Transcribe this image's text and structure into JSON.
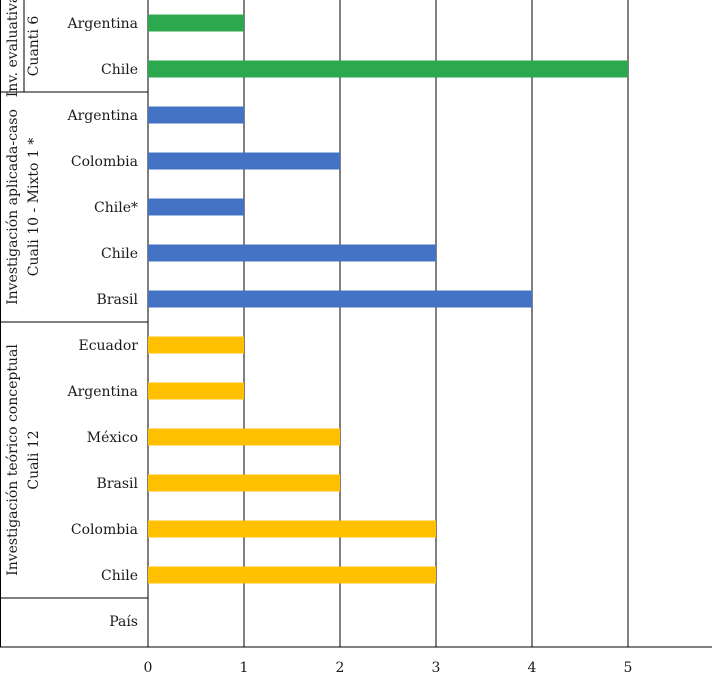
{
  "chart_data": {
    "type": "bar",
    "orientation": "horizontal",
    "xlim": [
      0,
      5
    ],
    "x_ticks": [
      "0",
      "1",
      "2",
      "3",
      "4",
      "5"
    ],
    "grid": true,
    "groups": [
      {
        "label_lines": [
          "Inv. evaluativa",
          "Cuanti 6"
        ],
        "color": "#2ca84f",
        "bars": [
          {
            "label": "Argentina",
            "value": 1
          },
          {
            "label": "Chile",
            "value": 5
          }
        ]
      },
      {
        "label_lines": [
          "Investigación aplicada-caso",
          "Cuali 10 - Mixto 1 *"
        ],
        "color": "#4472c4",
        "bars": [
          {
            "label": "Argentina",
            "value": 1
          },
          {
            "label": "Colombia",
            "value": 2
          },
          {
            "label": "Chile*",
            "value": 1
          },
          {
            "label": "Chile",
            "value": 3
          },
          {
            "label": "Brasil",
            "value": 4
          }
        ]
      },
      {
        "label_lines": [
          "Investigación teórico conceptual",
          "Cuali 12"
        ],
        "color": "#ffc000",
        "bars": [
          {
            "label": "Ecuador",
            "value": 1
          },
          {
            "label": "Argentina",
            "value": 1
          },
          {
            "label": "México",
            "value": 2
          },
          {
            "label": "Brasil",
            "value": 2
          },
          {
            "label": "Colombia",
            "value": 3
          },
          {
            "label": "Chile",
            "value": 3
          }
        ]
      }
    ],
    "footer_label": "País"
  }
}
